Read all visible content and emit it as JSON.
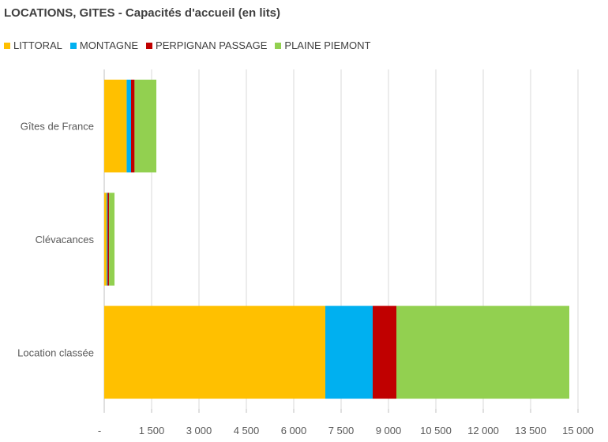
{
  "chart_data": {
    "type": "bar",
    "orientation": "horizontal",
    "stacked": true,
    "title": "LOCATIONS, GITES - Capacités d'accueil (en lits)",
    "categories": [
      "Gîtes de France",
      "Clévacances",
      "Location classée"
    ],
    "series": [
      {
        "name": "LITTORAL",
        "color": "#FFC000",
        "values": [
          710,
          75,
          7000
        ]
      },
      {
        "name": "MONTAGNE",
        "color": "#00B0F0",
        "values": [
          140,
          30,
          1500
        ]
      },
      {
        "name": "PERPIGNAN PASSAGE",
        "color": "#C00000",
        "values": [
          110,
          45,
          750
        ]
      },
      {
        "name": "PLAINE PIEMONT",
        "color": "#92D050",
        "values": [
          690,
          175,
          5475
        ]
      }
    ],
    "xlim": [
      0,
      15000
    ],
    "xticks": [
      0,
      1500,
      3000,
      4500,
      6000,
      7500,
      9000,
      10500,
      12000,
      13500,
      15000
    ],
    "xtick_labels": [
      "-",
      "1 500",
      "3 000",
      "4 500",
      "6 000",
      "7 500",
      "9 000",
      "10 500",
      "12 000",
      "13 500",
      "15 000"
    ],
    "grid": "vertical",
    "legend": "top-left",
    "xlabel": "",
    "ylabel": ""
  }
}
